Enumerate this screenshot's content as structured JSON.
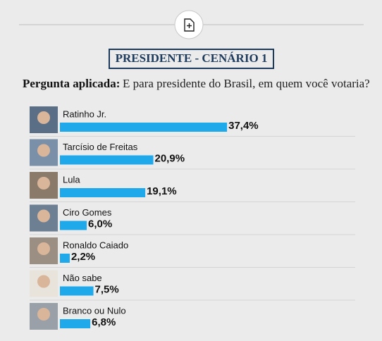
{
  "chart_data": {
    "type": "bar",
    "orientation": "horizontal",
    "title": "PRESIDENTE - CENÁRIO 1",
    "question_label": "Pergunta aplicada:",
    "question": "E para presidente do Brasil, em quem você votaria?",
    "categories": [
      "Ratinho Jr.",
      "Tarcísio de Freitas",
      "Lula",
      "Ciro Gomes",
      "Ronaldo Caiado",
      "Não sabe",
      "Branco ou Nulo"
    ],
    "values": [
      37.4,
      20.9,
      19.1,
      6.0,
      2.2,
      7.5,
      6.8
    ],
    "value_labels": [
      "37,4%",
      "20,9%",
      "19,1%",
      "6,0%",
      "2,2%",
      "7,5%",
      "6,8%"
    ],
    "color": "#1fa8ea"
  }
}
